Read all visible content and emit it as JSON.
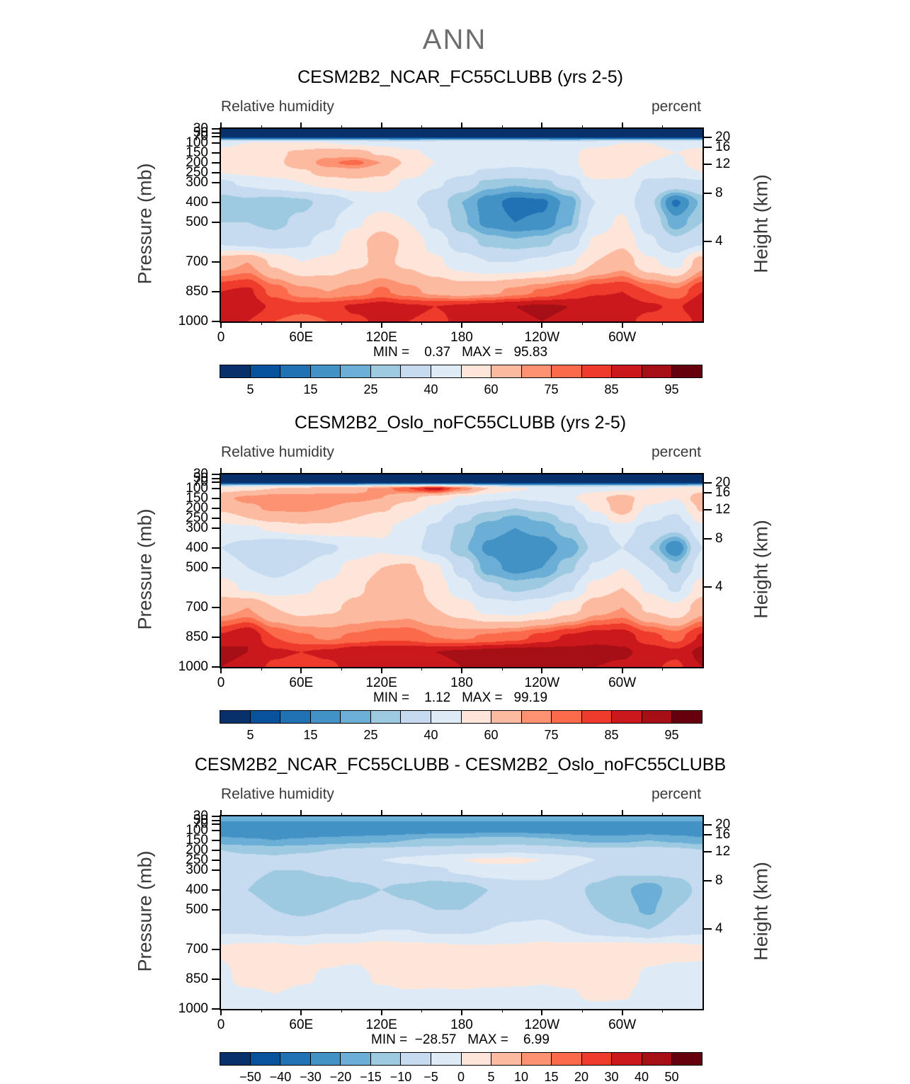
{
  "page_title": "ANN",
  "shared": {
    "field_label": "Relative humidity",
    "units_label": "percent",
    "ylabel_left": "Pressure (mb)",
    "ylabel_right": "Height (km)",
    "x_ticks": [
      "0",
      "60E",
      "120E",
      "180",
      "120W",
      "60W"
    ],
    "x_tick_lons": [
      0,
      60,
      120,
      180,
      240,
      300
    ],
    "x_minor_lons": [
      30,
      90,
      150,
      210,
      270,
      330
    ],
    "pressure_ticks": [
      30,
      50,
      70,
      100,
      150,
      200,
      250,
      300,
      400,
      500,
      700,
      850,
      1000
    ],
    "height_ticks": [
      20,
      16,
      12,
      8,
      4
    ],
    "colors16": [
      "#08306b",
      "#08519c",
      "#2171b5",
      "#4292c6",
      "#6baed6",
      "#9ecae1",
      "#c6dbef",
      "#deebf7",
      "#fee5d9",
      "#fcbba1",
      "#fc9272",
      "#fb6a4a",
      "#ef3b2c",
      "#cb181d",
      "#a50f15",
      "#67000d"
    ]
  },
  "panels": [
    {
      "title": "CESM2B2_NCAR_FC55CLUBB (yrs 2-5)",
      "minmax": "MIN =    0.37   MAX =   95.83",
      "colorbar_labels": [
        "5",
        "15",
        "25",
        "40",
        "60",
        "75",
        "85",
        "95"
      ],
      "colorbar_indices": [
        1,
        3,
        5,
        7,
        9,
        11,
        13,
        15
      ]
    },
    {
      "title": "CESM2B2_Oslo_noFC55CLUBB (yrs 2-5)",
      "minmax": "MIN =    1.12   MAX =   99.19",
      "colorbar_labels": [
        "5",
        "15",
        "25",
        "40",
        "60",
        "75",
        "85",
        "95"
      ],
      "colorbar_indices": [
        1,
        3,
        5,
        7,
        9,
        11,
        13,
        15
      ]
    },
    {
      "title": "CESM2B2_NCAR_FC55CLUBB - CESM2B2_Oslo_noFC55CLUBB",
      "minmax": "MIN =  −28.57   MAX =    6.99",
      "colorbar_labels": [
        "−50",
        "−40",
        "−30",
        "−20",
        "−15",
        "−10",
        "−5",
        "0",
        "5",
        "10",
        "15",
        "20",
        "30",
        "40",
        "50"
      ],
      "colorbar_indices": [
        1,
        2,
        3,
        4,
        5,
        6,
        7,
        8,
        9,
        10,
        11,
        12,
        13,
        14,
        15
      ]
    }
  ],
  "chart_data": [
    {
      "type": "heatmap",
      "title": "CESM2B2_NCAR_FC55CLUBB (yrs 2-5)",
      "field": "Relative humidity",
      "units": "percent",
      "min": 0.37,
      "max": 95.83,
      "lons": [
        0,
        20,
        40,
        60,
        80,
        100,
        120,
        140,
        160,
        180,
        200,
        220,
        240,
        260,
        280,
        300,
        320,
        340,
        360
      ],
      "pressures": [
        30,
        70,
        100,
        150,
        200,
        250,
        300,
        400,
        500,
        600,
        700,
        850,
        925,
        1000
      ],
      "levels": [
        5,
        10,
        15,
        20,
        25,
        30,
        40,
        50,
        60,
        70,
        75,
        80,
        85,
        90,
        95
      ],
      "values": [
        [
          2,
          2,
          2,
          2,
          2,
          2,
          2,
          2,
          2,
          2,
          2,
          2,
          2,
          2,
          2,
          2,
          2,
          2,
          2
        ],
        [
          3,
          3,
          3,
          3,
          3,
          3,
          3,
          3,
          3,
          3,
          3,
          3,
          3,
          3,
          3,
          3,
          3,
          3,
          3
        ],
        [
          48,
          50,
          52,
          52,
          50,
          48,
          46,
          45,
          47,
          49,
          50,
          48,
          46,
          45,
          47,
          50,
          50,
          48,
          48
        ],
        [
          52,
          55,
          58,
          62,
          66,
          64,
          58,
          52,
          48,
          45,
          45,
          44,
          45,
          48,
          54,
          55,
          52,
          50,
          52
        ],
        [
          55,
          56,
          58,
          65,
          74,
          77,
          70,
          58,
          50,
          46,
          44,
          43,
          44,
          46,
          60,
          58,
          50,
          48,
          55
        ],
        [
          50,
          52,
          55,
          58,
          64,
          66,
          62,
          54,
          48,
          42,
          38,
          36,
          38,
          42,
          56,
          54,
          44,
          45,
          50
        ],
        [
          38,
          42,
          46,
          50,
          54,
          57,
          55,
          48,
          42,
          35,
          28,
          26,
          28,
          34,
          48,
          48,
          38,
          36,
          38
        ],
        [
          26,
          28,
          26,
          28,
          33,
          40,
          45,
          42,
          34,
          25,
          17,
          13,
          14,
          22,
          40,
          46,
          32,
          14,
          26
        ],
        [
          30,
          30,
          28,
          32,
          38,
          48,
          56,
          50,
          38,
          26,
          18,
          15,
          16,
          24,
          44,
          52,
          36,
          22,
          30
        ],
        [
          38,
          36,
          34,
          38,
          44,
          56,
          65,
          58,
          46,
          34,
          28,
          26,
          28,
          34,
          52,
          58,
          42,
          32,
          38
        ],
        [
          66,
          70,
          58,
          50,
          52,
          58,
          62,
          58,
          52,
          45,
          40,
          40,
          42,
          48,
          60,
          66,
          52,
          46,
          66
        ],
        [
          85,
          86,
          78,
          72,
          70,
          72,
          76,
          72,
          68,
          66,
          68,
          72,
          76,
          80,
          84,
          85,
          80,
          76,
          85
        ],
        [
          90,
          88,
          84,
          82,
          83,
          86,
          88,
          86,
          85,
          86,
          88,
          90,
          91,
          90,
          90,
          89,
          86,
          84,
          90
        ],
        [
          87,
          85,
          80,
          78,
          80,
          84,
          86,
          85,
          84,
          86,
          88,
          89,
          90,
          89,
          88,
          87,
          83,
          81,
          87
        ]
      ]
    },
    {
      "type": "heatmap",
      "title": "CESM2B2_Oslo_noFC55CLUBB (yrs 2-5)",
      "field": "Relative humidity",
      "units": "percent",
      "min": 1.12,
      "max": 99.19,
      "lons": [
        0,
        20,
        40,
        60,
        80,
        100,
        120,
        140,
        160,
        180,
        200,
        220,
        240,
        260,
        280,
        300,
        320,
        340,
        360
      ],
      "pressures": [
        30,
        70,
        100,
        150,
        200,
        250,
        300,
        400,
        500,
        600,
        700,
        850,
        925,
        1000
      ],
      "levels": [
        5,
        10,
        15,
        20,
        25,
        30,
        40,
        50,
        60,
        70,
        75,
        80,
        85,
        90,
        95
      ],
      "values": [
        [
          2,
          2,
          2,
          2,
          2,
          2,
          2,
          2,
          2,
          2,
          2,
          2,
          2,
          2,
          2,
          2,
          2,
          2,
          2
        ],
        [
          3,
          3,
          3,
          3,
          3,
          3,
          3,
          3,
          3,
          3,
          3,
          3,
          3,
          3,
          3,
          3,
          3,
          3,
          3
        ],
        [
          55,
          58,
          60,
          62,
          65,
          68,
          72,
          80,
          88,
          75,
          60,
          52,
          48,
          46,
          46,
          48,
          50,
          52,
          55
        ],
        [
          68,
          72,
          75,
          75,
          74,
          72,
          70,
          62,
          55,
          48,
          42,
          40,
          42,
          48,
          58,
          64,
          55,
          50,
          68
        ],
        [
          62,
          68,
          72,
          72,
          70,
          66,
          62,
          55,
          48,
          38,
          32,
          30,
          32,
          38,
          52,
          66,
          48,
          44,
          62
        ],
        [
          55,
          60,
          64,
          66,
          64,
          60,
          56,
          50,
          42,
          32,
          26,
          24,
          26,
          32,
          44,
          58,
          42,
          38,
          55
        ],
        [
          46,
          48,
          52,
          56,
          56,
          54,
          52,
          46,
          38,
          28,
          22,
          20,
          22,
          28,
          36,
          44,
          36,
          32,
          46
        ],
        [
          40,
          36,
          30,
          32,
          38,
          44,
          48,
          44,
          36,
          26,
          19,
          16,
          17,
          22,
          32,
          40,
          30,
          15,
          40
        ],
        [
          45,
          40,
          36,
          40,
          46,
          54,
          60,
          62,
          52,
          36,
          22,
          18,
          20,
          28,
          42,
          50,
          40,
          28,
          45
        ],
        [
          55,
          48,
          44,
          48,
          52,
          58,
          64,
          66,
          56,
          44,
          32,
          28,
          30,
          38,
          54,
          60,
          48,
          38,
          55
        ],
        [
          66,
          70,
          60,
          56,
          58,
          62,
          64,
          66,
          60,
          54,
          46,
          44,
          48,
          55,
          66,
          70,
          58,
          52,
          66
        ],
        [
          86,
          90,
          80,
          76,
          74,
          76,
          78,
          78,
          75,
          74,
          76,
          78,
          82,
          86,
          88,
          88,
          82,
          78,
          86
        ],
        [
          92,
          90,
          86,
          85,
          86,
          89,
          90,
          90,
          90,
          91,
          92,
          93,
          93,
          92,
          92,
          91,
          88,
          86,
          92
        ],
        [
          90,
          88,
          84,
          82,
          84,
          87,
          88,
          88,
          88,
          90,
          91,
          92,
          92,
          91,
          90,
          89,
          86,
          84,
          90
        ]
      ]
    },
    {
      "type": "heatmap",
      "title": "CESM2B2_NCAR_FC55CLUBB - CESM2B2_Oslo_noFC55CLUBB",
      "field": "Relative humidity",
      "units": "percent",
      "min": -28.57,
      "max": 6.99,
      "lons": [
        0,
        20,
        40,
        60,
        80,
        100,
        120,
        140,
        160,
        180,
        200,
        220,
        240,
        260,
        280,
        300,
        320,
        340,
        360
      ],
      "pressures": [
        30,
        70,
        100,
        150,
        200,
        250,
        300,
        400,
        500,
        600,
        700,
        850,
        925,
        1000
      ],
      "levels": [
        -50,
        -40,
        -30,
        -20,
        -15,
        -10,
        -5,
        0,
        5,
        10,
        15,
        20,
        30,
        40,
        50
      ],
      "values": [
        [
          -16,
          -16,
          -16,
          -16,
          -16,
          -16,
          -16,
          -16,
          -16,
          -16,
          -16,
          -16,
          -16,
          -16,
          -16,
          -16,
          -16,
          -16,
          -16
        ],
        [
          -22,
          -22,
          -22,
          -22,
          -22,
          -22,
          -22,
          -22,
          -22,
          -22,
          -22,
          -22,
          -22,
          -22,
          -22,
          -22,
          -22,
          -22,
          -22
        ],
        [
          -26,
          -27,
          -28,
          -27,
          -26,
          -25,
          -24,
          -23,
          -22,
          -22,
          -21,
          -21,
          -22,
          -23,
          -24,
          -24,
          -23,
          -24,
          -26
        ],
        [
          -18,
          -19,
          -20,
          -19,
          -18,
          -17,
          -16,
          -15,
          -14,
          -14,
          -13,
          -13,
          -14,
          -15,
          -16,
          -16,
          -15,
          -16,
          -18
        ],
        [
          -10,
          -11,
          -12,
          -11,
          -10,
          -9,
          -9,
          -8,
          -8,
          -7,
          -7,
          -6,
          -7,
          -8,
          -9,
          -9,
          -8,
          -9,
          -10
        ],
        [
          -7,
          -8,
          -8,
          -7,
          -6,
          -6,
          -5,
          -4,
          -2,
          0,
          1,
          1,
          0,
          -2,
          -5,
          -6,
          -5,
          -6,
          -7
        ],
        [
          -8,
          -9,
          -10,
          -10,
          -9,
          -8,
          -8,
          -7,
          -6,
          -4,
          -2,
          -2,
          -3,
          -5,
          -8,
          -9,
          -8,
          -9,
          -8
        ],
        [
          -9,
          -10,
          -12,
          -14,
          -13,
          -11,
          -10,
          -11,
          -13,
          -13,
          -10,
          -8,
          -7,
          -8,
          -11,
          -14,
          -18,
          -12,
          -9
        ],
        [
          -8,
          -8,
          -10,
          -11,
          -10,
          -9,
          -8,
          -9,
          -10,
          -10,
          -8,
          -7,
          -6,
          -7,
          -10,
          -13,
          -16,
          -10,
          -8
        ],
        [
          -6,
          -6,
          -7,
          -7,
          -6,
          -6,
          -5,
          -5,
          -6,
          -6,
          -5,
          -4,
          -4,
          -5,
          -7,
          -9,
          -10,
          -7,
          -6
        ],
        [
          1,
          2,
          2,
          1,
          2,
          2,
          3,
          2,
          2,
          1,
          1,
          1,
          2,
          2,
          3,
          4,
          3,
          2,
          1
        ],
        [
          -2,
          3,
          4,
          1,
          -1,
          -2,
          1,
          3,
          2,
          3,
          3,
          2,
          1,
          2,
          5,
          4,
          -2,
          -3,
          -2
        ],
        [
          -4,
          -2,
          0,
          -2,
          -3,
          -3,
          -2,
          -1,
          -1,
          -1,
          -2,
          -2,
          -2,
          -1,
          2,
          1,
          -3,
          -4,
          -4
        ],
        [
          -5,
          -4,
          -3,
          -4,
          -4,
          -4,
          -3,
          -3,
          -3,
          -3,
          -3,
          -3,
          -3,
          -3,
          -2,
          -2,
          -4,
          -5,
          -5
        ]
      ]
    }
  ]
}
